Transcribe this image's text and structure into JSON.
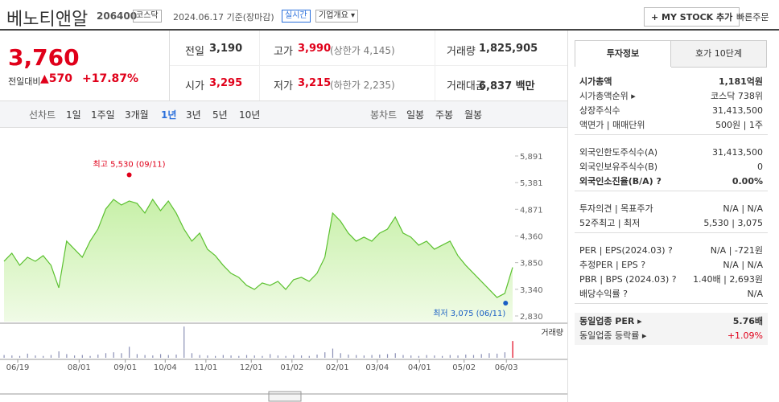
{
  "header": {
    "name": "베노티앤알",
    "code": "206400",
    "market": "코스닥",
    "date": "2024.06.17 기준(장마감)",
    "realtime": "실시간",
    "company_info": "기업개요 ▾",
    "mystock": "+ MY STOCK 추가",
    "quick_order": "빠른주문"
  },
  "quote": {
    "price": "3,760",
    "change_label": "전일대비",
    "change": "▲570",
    "rate": "+17.87%",
    "items": [
      {
        "label": "전일",
        "value": "3,190",
        "extra": ""
      },
      {
        "label": "고가",
        "value": "3,990",
        "extra": "(상한가 4,145)"
      },
      {
        "label": "거래량",
        "value": "1,825,905",
        "extra": ""
      },
      {
        "label": "시가",
        "value": "3,295",
        "extra": ""
      },
      {
        "label": "저가",
        "value": "3,215",
        "extra": "(하한가 2,235)"
      },
      {
        "label": "거래대금",
        "value": "6,837 백만",
        "extra": ""
      }
    ]
  },
  "tabs": {
    "line_label": "선차트",
    "periods": [
      "1일",
      "1주일",
      "3개월",
      "1년",
      "3년",
      "5년",
      "10년"
    ],
    "active_period": 3,
    "candle_label": "봉차트",
    "candles": [
      "일봉",
      "주봉",
      "월봉"
    ]
  },
  "chart_data": {
    "type": "area",
    "color": "#5cc130",
    "values": [
      3876,
      4030,
      3800,
      3953,
      3876,
      3984,
      3800,
      3369,
      4261,
      4107,
      3953,
      4261,
      4491,
      4876,
      5060,
      4953,
      5030,
      4984,
      4799,
      5060,
      4845,
      5030,
      4799,
      4491,
      4261,
      4415,
      4107,
      3984,
      3800,
      3646,
      3569,
      3415,
      3338,
      3461,
      3415,
      3492,
      3338,
      3523,
      3569,
      3492,
      3646,
      3953,
      4799,
      4645,
      4415,
      4261,
      4338,
      4261,
      4415,
      4491,
      4722,
      4415,
      4338,
      4184,
      4261,
      4107,
      4184,
      4261,
      3984,
      3800,
      3646,
      3492,
      3338,
      3184,
      3261,
      3760
    ],
    "volumes": [
      300000,
      250000,
      200000,
      450000,
      250000,
      200000,
      300000,
      700000,
      400000,
      250000,
      300000,
      200000,
      350000,
      500000,
      600000,
      500000,
      1200000,
      400000,
      300000,
      250000,
      400000,
      300000,
      350000,
      3400000,
      500000,
      300000,
      250000,
      200000,
      300000,
      250000,
      200000,
      300000,
      250000,
      200000,
      400000,
      250000,
      200000,
      300000,
      250000,
      200000,
      350000,
      600000,
      1000000,
      500000,
      350000,
      300000,
      250000,
      300000,
      350000,
      400000,
      500000,
      300000,
      250000,
      200000,
      300000,
      250000,
      200000,
      300000,
      250000,
      350000,
      300000,
      400000,
      500000,
      450000,
      600000,
      1825905
    ],
    "volume_label": "거래량",
    "vlim": [
      0,
      3500000
    ],
    "xlim": [
      0,
      65
    ],
    "ylim": [
      2722,
      6260
    ],
    "yticks": [
      {
        "value": 2830,
        "label": "2,830"
      },
      {
        "value": 3340,
        "label": "3,340"
      },
      {
        "value": 3850,
        "label": "3,850"
      },
      {
        "value": 4360,
        "label": "4,360"
      },
      {
        "value": 4871,
        "label": "4,871"
      },
      {
        "value": 5381,
        "label": "5,381"
      },
      {
        "value": 5891,
        "label": "5,891"
      }
    ],
    "xticks": [
      {
        "value": 1.75,
        "label": "06/19"
      },
      {
        "value": 9.6,
        "label": "08/01"
      },
      {
        "value": 15.5,
        "label": "09/01"
      },
      {
        "value": 20.6,
        "label": "10/04"
      },
      {
        "value": 25.8,
        "label": "11/01"
      },
      {
        "value": 31.6,
        "label": "12/01"
      },
      {
        "value": 36.8,
        "label": "01/02"
      },
      {
        "value": 42.6,
        "label": "02/01"
      },
      {
        "value": 47.7,
        "label": "03/04"
      },
      {
        "value": 53.1,
        "label": "04/01"
      },
      {
        "value": 58.8,
        "label": "05/02"
      },
      {
        "value": 64.2,
        "label": "06/03"
      }
    ],
    "high": {
      "label": "최고 5,530 (09/11)",
      "value": 5530,
      "x": 16
    },
    "low": {
      "label": "최저 3,075 (06/11)",
      "value": 3075,
      "x": 64.1
    }
  },
  "sidebar": {
    "tabs": [
      "투자정보",
      "호가 10단계"
    ],
    "sections": [
      [
        {
          "label": "시가총액",
          "value": "1,181억원",
          "bold": true
        },
        {
          "label": "시가총액순위 ▸",
          "value": "코스닥 738위"
        },
        {
          "label": "상장주식수",
          "value": "31,413,500"
        },
        {
          "label": "액면가 | 매매단위",
          "value": "500원 | 1주"
        }
      ],
      [
        {
          "label": "외국인한도주식수(A)",
          "value": "31,413,500"
        },
        {
          "label": "외국인보유주식수(B)",
          "value": "0"
        },
        {
          "label": "외국인소진율(B/A) ?",
          "value": "0.00%",
          "bold": true
        }
      ],
      [
        {
          "label": "투자의견 | 목표주가",
          "value": "N/A | N/A"
        },
        {
          "label": "52주최고 | 최저",
          "value": "5,530 | 3,075"
        }
      ],
      [
        {
          "label": "PER | EPS(2024.03) ?",
          "value": "N/A | -721원"
        },
        {
          "label": "추정PER | EPS ?",
          "value": "N/A | N/A"
        },
        {
          "label": "PBR | BPS (2024.03) ?",
          "value": "1.40배 | 2,693원"
        },
        {
          "label": "배당수익률 ?",
          "value": "N/A"
        }
      ],
      [
        {
          "label": "동일업종 PER ▸",
          "value": "5.76배",
          "bold": true
        },
        {
          "label": "동일업종 등락률 ▸",
          "value": "+1.09%",
          "red": true
        }
      ]
    ]
  }
}
